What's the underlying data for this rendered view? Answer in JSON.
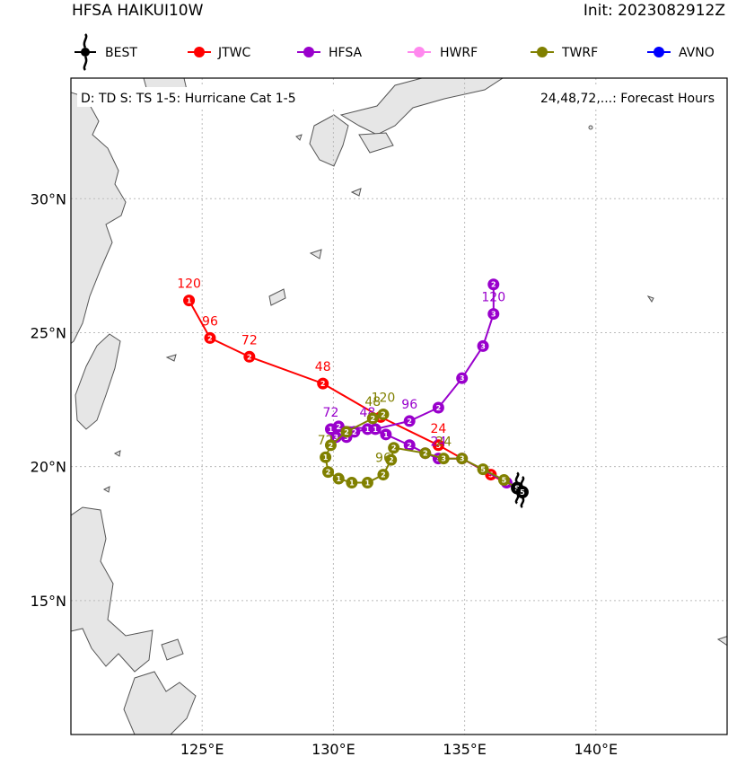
{
  "header": {
    "title_left": "HFSA HAIKUI10W",
    "title_right": "Init: 2023082912Z"
  },
  "colors": {
    "BEST": "#000000",
    "JTWC": "#ff0000",
    "HFSA": "#9900cc",
    "HWRF": "#ff88ee",
    "TWRF": "#808000",
    "AVNO": "#0000ff",
    "land": "#e6e6e6",
    "coast": "#555555",
    "grid": "#bbbbbb"
  },
  "chart_data": {
    "type": "map-track",
    "legend": [
      "BEST",
      "JTWC",
      "HFSA",
      "HWRF",
      "TWRF",
      "AVNO"
    ],
    "annotation_left": "D: TD  S: TS  1-5: Hurricane Cat 1-5",
    "annotation_right": "24,48,72,...: Forecast Hours",
    "xlim": [
      120.0,
      145.0
    ],
    "ylim": [
      10.0,
      34.5
    ],
    "xticks": [
      {
        "value": 125,
        "label": "125°E"
      },
      {
        "value": 130,
        "label": "130°E"
      },
      {
        "value": 135,
        "label": "135°E"
      },
      {
        "value": 140,
        "label": "140°E"
      }
    ],
    "yticks": [
      {
        "value": 15,
        "label": "15°N"
      },
      {
        "value": 20,
        "label": "20°N"
      },
      {
        "value": 25,
        "label": "25°N"
      },
      {
        "value": 30,
        "label": "30°N"
      }
    ],
    "series": [
      {
        "name": "JTWC",
        "points": [
          [
            137.2,
            19.05,
            "5",
            ""
          ],
          [
            136.0,
            19.7,
            "5",
            ""
          ],
          [
            134.0,
            20.8,
            "5",
            "24"
          ],
          [
            131.8,
            21.85,
            "1",
            ""
          ],
          [
            129.6,
            23.1,
            "2",
            "48"
          ],
          [
            126.8,
            24.1,
            "2",
            "72"
          ],
          [
            125.3,
            24.8,
            "2",
            "96"
          ],
          [
            124.5,
            26.2,
            "1",
            "120"
          ]
        ]
      },
      {
        "name": "HFSA",
        "points": [
          [
            137.2,
            19.05,
            "5",
            ""
          ],
          [
            136.6,
            19.4,
            "5",
            ""
          ],
          [
            134.9,
            20.3,
            "3",
            ""
          ],
          [
            134.0,
            20.3,
            "3",
            "24"
          ],
          [
            133.5,
            20.5,
            "2",
            ""
          ],
          [
            132.9,
            20.8,
            "2",
            ""
          ],
          [
            132.0,
            21.2,
            "1",
            ""
          ],
          [
            131.3,
            21.4,
            "1",
            "48"
          ],
          [
            130.8,
            21.3,
            "2",
            ""
          ],
          [
            130.5,
            21.1,
            "3",
            ""
          ],
          [
            130.1,
            21.1,
            "3",
            ""
          ],
          [
            129.9,
            21.4,
            "1",
            "72"
          ],
          [
            130.2,
            21.5,
            "2",
            ""
          ],
          [
            131.6,
            21.4,
            "1",
            ""
          ],
          [
            132.9,
            21.7,
            "2",
            "96"
          ],
          [
            134.0,
            22.2,
            "2",
            ""
          ],
          [
            134.9,
            23.3,
            "3",
            ""
          ],
          [
            135.7,
            24.5,
            "3",
            ""
          ],
          [
            136.1,
            25.7,
            "3",
            "120"
          ],
          [
            136.1,
            26.8,
            "2",
            ""
          ]
        ]
      },
      {
        "name": "TWRF",
        "points": [
          [
            137.2,
            19.05,
            "5",
            ""
          ],
          [
            136.5,
            19.5,
            "5",
            ""
          ],
          [
            135.7,
            19.9,
            "5",
            ""
          ],
          [
            134.9,
            20.3,
            "3",
            ""
          ],
          [
            134.2,
            20.3,
            "3",
            "24"
          ],
          [
            133.5,
            20.5,
            "2",
            ""
          ],
          [
            132.3,
            20.7,
            "2",
            ""
          ],
          [
            132.2,
            20.25,
            "2",
            ""
          ],
          [
            131.9,
            19.7,
            "2",
            "96"
          ],
          [
            131.3,
            19.4,
            "1",
            ""
          ],
          [
            130.7,
            19.4,
            "1",
            ""
          ],
          [
            130.2,
            19.55,
            "1",
            ""
          ],
          [
            129.8,
            19.8,
            "2",
            ""
          ],
          [
            129.7,
            20.35,
            "1",
            "72"
          ],
          [
            129.9,
            20.8,
            "2",
            ""
          ],
          [
            130.5,
            21.3,
            "2",
            ""
          ],
          [
            131.5,
            21.8,
            "2",
            "48"
          ],
          [
            131.9,
            21.95,
            "2",
            "120"
          ]
        ]
      },
      {
        "name": "BEST",
        "points": [
          [
            137.0,
            19.2,
            "S",
            ""
          ],
          [
            137.2,
            19.05,
            "5",
            ""
          ]
        ]
      }
    ]
  }
}
